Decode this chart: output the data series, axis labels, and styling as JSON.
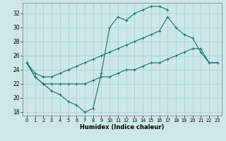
{
  "xlabel": "Humidex (Indice chaleur)",
  "bg_color": "#cce8e8",
  "grid_color": "#aad4d4",
  "line_color": "#1a7070",
  "xlim": [
    -0.5,
    23.5
  ],
  "ylim": [
    17.5,
    33.5
  ],
  "yticks": [
    18,
    20,
    22,
    24,
    26,
    28,
    30,
    32
  ],
  "xticks": [
    0,
    1,
    2,
    3,
    4,
    5,
    6,
    7,
    8,
    9,
    10,
    11,
    12,
    13,
    14,
    15,
    16,
    17,
    18,
    19,
    20,
    21,
    22,
    23
  ],
  "line_jagged_x": [
    0,
    1,
    2,
    3,
    4,
    5,
    6,
    7,
    8,
    9,
    10,
    11,
    12,
    13,
    14,
    15,
    16,
    17
  ],
  "line_jagged_y": [
    25.0,
    23.0,
    22.0,
    21.0,
    20.5,
    19.5,
    19.0,
    18.0,
    18.5,
    23.5,
    30.0,
    31.5,
    31.0,
    32.0,
    32.5,
    33.0,
    33.0,
    32.5
  ],
  "line_upper_x": [
    0,
    1,
    2,
    3,
    4,
    5,
    6,
    7,
    8,
    9,
    10,
    11,
    12,
    13,
    14,
    15,
    16,
    17,
    18,
    19,
    20,
    21,
    22,
    23
  ],
  "line_upper_y": [
    25.0,
    23.5,
    23.0,
    23.0,
    23.5,
    24.0,
    24.5,
    25.0,
    25.5,
    26.0,
    26.5,
    27.0,
    27.5,
    28.0,
    28.5,
    29.0,
    29.5,
    31.5,
    30.0,
    29.0,
    28.5,
    26.5,
    25.0,
    25.0
  ],
  "line_lower_x": [
    0,
    1,
    2,
    3,
    4,
    5,
    6,
    7,
    8,
    9,
    10,
    11,
    12,
    13,
    14,
    15,
    16,
    17,
    18,
    19,
    20,
    21,
    22,
    23
  ],
  "line_lower_y": [
    25.0,
    23.0,
    22.0,
    22.0,
    22.0,
    22.0,
    22.0,
    22.0,
    22.5,
    23.0,
    23.0,
    23.5,
    24.0,
    24.0,
    24.5,
    25.0,
    25.0,
    25.5,
    26.0,
    26.5,
    27.0,
    27.0,
    25.0,
    25.0
  ]
}
